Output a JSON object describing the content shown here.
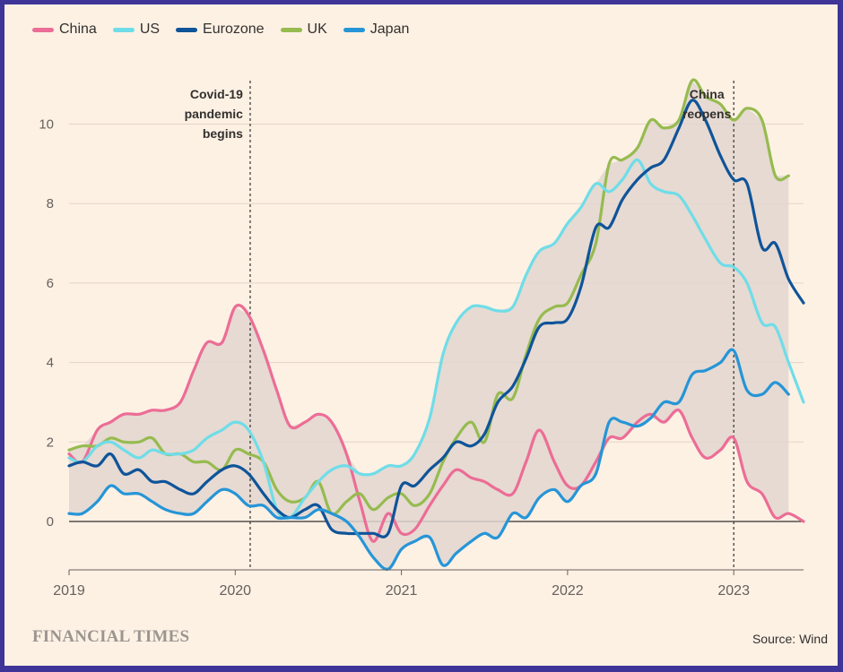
{
  "footer": {
    "logo": "FINANCIAL TIMES",
    "source": "Source: Wind"
  },
  "annotations": [
    {
      "text": [
        "Covid-19",
        "pandemic",
        "begins"
      ],
      "x": 2020.09
    },
    {
      "text": [
        "China",
        "reopens"
      ],
      "x": 2023.0
    }
  ],
  "chart_data": {
    "type": "line",
    "title": "",
    "xlabel": "",
    "ylabel": "",
    "xlim": [
      2019.0,
      2023.42
    ],
    "ylim": [
      -1.2,
      11.2
    ],
    "x_ticks": [
      2019,
      2020,
      2021,
      2022,
      2023
    ],
    "x_tick_labels": [
      "2019",
      "2020",
      "2021",
      "2022",
      "2023"
    ],
    "y_ticks": [
      0,
      2,
      4,
      6,
      8,
      10
    ],
    "y_tick_labels": [
      "0",
      "2",
      "4",
      "6",
      "8",
      "10"
    ],
    "grid": true,
    "legend_position": "top-left",
    "shaded_band": "range between highest and lowest series",
    "series": [
      {
        "name": "China",
        "color": "#ec6d96",
        "points": [
          [
            2019.0,
            1.7
          ],
          [
            2019.08,
            1.5
          ],
          [
            2019.17,
            2.3
          ],
          [
            2019.25,
            2.5
          ],
          [
            2019.33,
            2.7
          ],
          [
            2019.42,
            2.7
          ],
          [
            2019.5,
            2.8
          ],
          [
            2019.58,
            2.8
          ],
          [
            2019.67,
            3.0
          ],
          [
            2019.75,
            3.8
          ],
          [
            2019.83,
            4.5
          ],
          [
            2019.92,
            4.5
          ],
          [
            2020.0,
            5.4
          ],
          [
            2020.08,
            5.2
          ],
          [
            2020.17,
            4.3
          ],
          [
            2020.25,
            3.3
          ],
          [
            2020.33,
            2.4
          ],
          [
            2020.42,
            2.5
          ],
          [
            2020.5,
            2.7
          ],
          [
            2020.58,
            2.5
          ],
          [
            2020.67,
            1.7
          ],
          [
            2020.75,
            0.5
          ],
          [
            2020.83,
            -0.5
          ],
          [
            2020.92,
            0.2
          ],
          [
            2021.0,
            -0.3
          ],
          [
            2021.08,
            -0.2
          ],
          [
            2021.17,
            0.4
          ],
          [
            2021.25,
            0.9
          ],
          [
            2021.33,
            1.3
          ],
          [
            2021.42,
            1.1
          ],
          [
            2021.5,
            1.0
          ],
          [
            2021.58,
            0.8
          ],
          [
            2021.67,
            0.7
          ],
          [
            2021.75,
            1.5
          ],
          [
            2021.83,
            2.3
          ],
          [
            2021.92,
            1.5
          ],
          [
            2022.0,
            0.9
          ],
          [
            2022.08,
            0.9
          ],
          [
            2022.17,
            1.5
          ],
          [
            2022.25,
            2.1
          ],
          [
            2022.33,
            2.1
          ],
          [
            2022.42,
            2.5
          ],
          [
            2022.5,
            2.7
          ],
          [
            2022.58,
            2.5
          ],
          [
            2022.67,
            2.8
          ],
          [
            2022.75,
            2.1
          ],
          [
            2022.83,
            1.6
          ],
          [
            2022.92,
            1.8
          ],
          [
            2023.0,
            2.1
          ],
          [
            2023.08,
            1.0
          ],
          [
            2023.17,
            0.7
          ],
          [
            2023.25,
            0.1
          ],
          [
            2023.33,
            0.2
          ],
          [
            2023.42,
            0.0
          ]
        ]
      },
      {
        "name": "US",
        "color": "#6fdde8",
        "points": [
          [
            2019.0,
            1.6
          ],
          [
            2019.08,
            1.5
          ],
          [
            2019.17,
            1.9
          ],
          [
            2019.25,
            2.0
          ],
          [
            2019.33,
            1.8
          ],
          [
            2019.42,
            1.6
          ],
          [
            2019.5,
            1.8
          ],
          [
            2019.58,
            1.7
          ],
          [
            2019.67,
            1.7
          ],
          [
            2019.75,
            1.8
          ],
          [
            2019.83,
            2.1
          ],
          [
            2019.92,
            2.3
          ],
          [
            2020.0,
            2.5
          ],
          [
            2020.08,
            2.3
          ],
          [
            2020.17,
            1.5
          ],
          [
            2020.25,
            0.3
          ],
          [
            2020.33,
            0.1
          ],
          [
            2020.42,
            0.6
          ],
          [
            2020.5,
            1.0
          ],
          [
            2020.58,
            1.3
          ],
          [
            2020.67,
            1.4
          ],
          [
            2020.75,
            1.2
          ],
          [
            2020.83,
            1.2
          ],
          [
            2020.92,
            1.4
          ],
          [
            2021.0,
            1.4
          ],
          [
            2021.08,
            1.7
          ],
          [
            2021.17,
            2.6
          ],
          [
            2021.25,
            4.2
          ],
          [
            2021.33,
            5.0
          ],
          [
            2021.42,
            5.4
          ],
          [
            2021.5,
            5.4
          ],
          [
            2021.58,
            5.3
          ],
          [
            2021.67,
            5.4
          ],
          [
            2021.75,
            6.2
          ],
          [
            2021.83,
            6.8
          ],
          [
            2021.92,
            7.0
          ],
          [
            2022.0,
            7.5
          ],
          [
            2022.08,
            7.9
          ],
          [
            2022.17,
            8.5
          ],
          [
            2022.25,
            8.3
          ],
          [
            2022.33,
            8.6
          ],
          [
            2022.42,
            9.1
          ],
          [
            2022.5,
            8.5
          ],
          [
            2022.58,
            8.3
          ],
          [
            2022.67,
            8.2
          ],
          [
            2022.75,
            7.7
          ],
          [
            2022.83,
            7.1
          ],
          [
            2022.92,
            6.5
          ],
          [
            2023.0,
            6.4
          ],
          [
            2023.08,
            6.0
          ],
          [
            2023.17,
            5.0
          ],
          [
            2023.25,
            4.9
          ],
          [
            2023.33,
            4.0
          ],
          [
            2023.42,
            3.0
          ]
        ]
      },
      {
        "name": "Eurozone",
        "color": "#0f5499",
        "points": [
          [
            2019.0,
            1.4
          ],
          [
            2019.08,
            1.5
          ],
          [
            2019.17,
            1.4
          ],
          [
            2019.25,
            1.7
          ],
          [
            2019.33,
            1.2
          ],
          [
            2019.42,
            1.3
          ],
          [
            2019.5,
            1.0
          ],
          [
            2019.58,
            1.0
          ],
          [
            2019.67,
            0.8
          ],
          [
            2019.75,
            0.7
          ],
          [
            2019.83,
            1.0
          ],
          [
            2019.92,
            1.3
          ],
          [
            2020.0,
            1.4
          ],
          [
            2020.08,
            1.2
          ],
          [
            2020.17,
            0.7
          ],
          [
            2020.25,
            0.3
          ],
          [
            2020.33,
            0.1
          ],
          [
            2020.42,
            0.3
          ],
          [
            2020.5,
            0.4
          ],
          [
            2020.58,
            -0.2
          ],
          [
            2020.67,
            -0.3
          ],
          [
            2020.75,
            -0.3
          ],
          [
            2020.83,
            -0.3
          ],
          [
            2020.92,
            -0.3
          ],
          [
            2021.0,
            0.9
          ],
          [
            2021.08,
            0.9
          ],
          [
            2021.17,
            1.3
          ],
          [
            2021.25,
            1.6
          ],
          [
            2021.33,
            2.0
          ],
          [
            2021.42,
            1.9
          ],
          [
            2021.5,
            2.2
          ],
          [
            2021.58,
            3.0
          ],
          [
            2021.67,
            3.4
          ],
          [
            2021.75,
            4.1
          ],
          [
            2021.83,
            4.9
          ],
          [
            2021.92,
            5.0
          ],
          [
            2022.0,
            5.1
          ],
          [
            2022.08,
            5.9
          ],
          [
            2022.17,
            7.4
          ],
          [
            2022.25,
            7.4
          ],
          [
            2022.33,
            8.1
          ],
          [
            2022.42,
            8.6
          ],
          [
            2022.5,
            8.9
          ],
          [
            2022.58,
            9.1
          ],
          [
            2022.67,
            9.9
          ],
          [
            2022.75,
            10.6
          ],
          [
            2022.83,
            10.1
          ],
          [
            2022.92,
            9.2
          ],
          [
            2023.0,
            8.6
          ],
          [
            2023.08,
            8.5
          ],
          [
            2023.17,
            6.9
          ],
          [
            2023.25,
            7.0
          ],
          [
            2023.33,
            6.1
          ],
          [
            2023.42,
            5.5
          ]
        ]
      },
      {
        "name": "UK",
        "color": "#96bb4f",
        "points": [
          [
            2019.0,
            1.8
          ],
          [
            2019.08,
            1.9
          ],
          [
            2019.17,
            1.9
          ],
          [
            2019.25,
            2.1
          ],
          [
            2019.33,
            2.0
          ],
          [
            2019.42,
            2.0
          ],
          [
            2019.5,
            2.1
          ],
          [
            2019.58,
            1.7
          ],
          [
            2019.67,
            1.7
          ],
          [
            2019.75,
            1.5
          ],
          [
            2019.83,
            1.5
          ],
          [
            2019.92,
            1.3
          ],
          [
            2020.0,
            1.8
          ],
          [
            2020.08,
            1.7
          ],
          [
            2020.17,
            1.5
          ],
          [
            2020.25,
            0.8
          ],
          [
            2020.33,
            0.5
          ],
          [
            2020.42,
            0.6
          ],
          [
            2020.5,
            1.0
          ],
          [
            2020.58,
            0.2
          ],
          [
            2020.67,
            0.5
          ],
          [
            2020.75,
            0.7
          ],
          [
            2020.83,
            0.3
          ],
          [
            2020.92,
            0.6
          ],
          [
            2021.0,
            0.7
          ],
          [
            2021.08,
            0.4
          ],
          [
            2021.17,
            0.7
          ],
          [
            2021.25,
            1.5
          ],
          [
            2021.33,
            2.1
          ],
          [
            2021.42,
            2.5
          ],
          [
            2021.5,
            2.0
          ],
          [
            2021.58,
            3.2
          ],
          [
            2021.67,
            3.1
          ],
          [
            2021.75,
            4.2
          ],
          [
            2021.83,
            5.1
          ],
          [
            2021.92,
            5.4
          ],
          [
            2022.0,
            5.5
          ],
          [
            2022.08,
            6.2
          ],
          [
            2022.17,
            7.0
          ],
          [
            2022.25,
            9.0
          ],
          [
            2022.33,
            9.1
          ],
          [
            2022.42,
            9.4
          ],
          [
            2022.5,
            10.1
          ],
          [
            2022.58,
            9.9
          ],
          [
            2022.67,
            10.1
          ],
          [
            2022.75,
            11.1
          ],
          [
            2022.83,
            10.7
          ],
          [
            2022.92,
            10.5
          ],
          [
            2023.0,
            10.1
          ],
          [
            2023.08,
            10.4
          ],
          [
            2023.17,
            10.1
          ],
          [
            2023.25,
            8.7
          ],
          [
            2023.33,
            8.7
          ]
        ]
      },
      {
        "name": "Japan",
        "color": "#2695d7",
        "points": [
          [
            2019.0,
            0.2
          ],
          [
            2019.08,
            0.2
          ],
          [
            2019.17,
            0.5
          ],
          [
            2019.25,
            0.9
          ],
          [
            2019.33,
            0.7
          ],
          [
            2019.42,
            0.7
          ],
          [
            2019.5,
            0.5
          ],
          [
            2019.58,
            0.3
          ],
          [
            2019.67,
            0.2
          ],
          [
            2019.75,
            0.2
          ],
          [
            2019.83,
            0.5
          ],
          [
            2019.92,
            0.8
          ],
          [
            2020.0,
            0.7
          ],
          [
            2020.08,
            0.4
          ],
          [
            2020.17,
            0.4
          ],
          [
            2020.25,
            0.1
          ],
          [
            2020.33,
            0.1
          ],
          [
            2020.42,
            0.1
          ],
          [
            2020.5,
            0.3
          ],
          [
            2020.58,
            0.2
          ],
          [
            2020.67,
            0.0
          ],
          [
            2020.75,
            -0.4
          ],
          [
            2020.83,
            -0.9
          ],
          [
            2020.92,
            -1.2
          ],
          [
            2021.0,
            -0.7
          ],
          [
            2021.08,
            -0.5
          ],
          [
            2021.17,
            -0.4
          ],
          [
            2021.25,
            -1.1
          ],
          [
            2021.33,
            -0.8
          ],
          [
            2021.42,
            -0.5
          ],
          [
            2021.5,
            -0.3
          ],
          [
            2021.58,
            -0.4
          ],
          [
            2021.67,
            0.2
          ],
          [
            2021.75,
            0.1
          ],
          [
            2021.83,
            0.6
          ],
          [
            2021.92,
            0.8
          ],
          [
            2022.0,
            0.5
          ],
          [
            2022.08,
            0.9
          ],
          [
            2022.17,
            1.2
          ],
          [
            2022.25,
            2.5
          ],
          [
            2022.33,
            2.5
          ],
          [
            2022.42,
            2.4
          ],
          [
            2022.5,
            2.6
          ],
          [
            2022.58,
            3.0
          ],
          [
            2022.67,
            3.0
          ],
          [
            2022.75,
            3.7
          ],
          [
            2022.83,
            3.8
          ],
          [
            2022.92,
            4.0
          ],
          [
            2023.0,
            4.3
          ],
          [
            2023.08,
            3.3
          ],
          [
            2023.17,
            3.2
          ],
          [
            2023.25,
            3.5
          ],
          [
            2023.33,
            3.2
          ]
        ]
      }
    ]
  }
}
